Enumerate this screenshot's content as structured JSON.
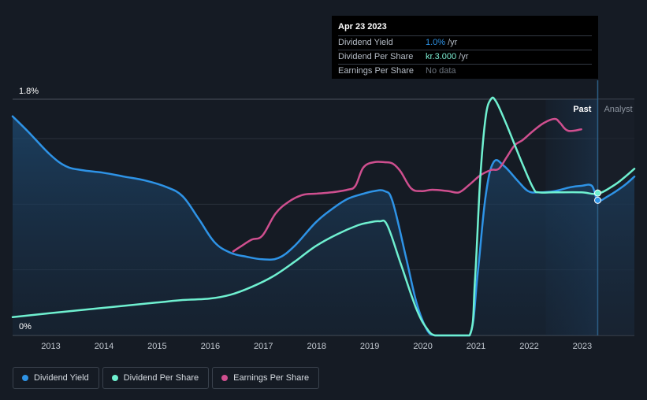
{
  "tooltip": {
    "date": "Apr 23 2023",
    "rows": [
      {
        "label": "Dividend Yield",
        "value": "1.0%",
        "unit": "/yr",
        "color": "#2e93e6"
      },
      {
        "label": "Dividend Per Share",
        "value": "kr.3.000",
        "unit": "/yr",
        "color": "#7ef0d5"
      },
      {
        "label": "Earnings Per Share",
        "value": "No data",
        "unit": "",
        "color": "#6b737d"
      }
    ]
  },
  "regions": {
    "past_label": "Past",
    "analyst_label": "Analyst"
  },
  "legend": [
    {
      "label": "Dividend Yield",
      "color": "#2e93e6"
    },
    {
      "label": "Dividend Per Share",
      "color": "#6ff0d0"
    },
    {
      "label": "Earnings Per Share",
      "color": "#cf4f8f"
    }
  ],
  "chart_data": {
    "type": "line",
    "y_ticks": [
      "1.8%",
      "0%"
    ],
    "x_ticks": [
      "2013",
      "2014",
      "2015",
      "2016",
      "2017",
      "2018",
      "2019",
      "2020",
      "2021",
      "2022",
      "2023"
    ],
    "ylim": [
      0,
      1.8
    ],
    "xlim": [
      2012.3,
      2024.0
    ],
    "past_end": 2023.31,
    "series": [
      {
        "name": "Dividend Yield",
        "color": "#2e93e6",
        "x": [
          2012.3,
          2012.6,
          2013.0,
          2013.3,
          2013.6,
          2014.0,
          2014.4,
          2014.8,
          2015.2,
          2015.5,
          2015.8,
          2016.1,
          2016.4,
          2016.7,
          2017.0,
          2017.3,
          2017.6,
          2018.0,
          2018.3,
          2018.6,
          2018.9,
          2019.1,
          2019.3,
          2019.45,
          2019.7,
          2019.9,
          2020.1,
          2020.25,
          2020.5,
          2020.9,
          2021.05,
          2021.2,
          2021.35,
          2021.55,
          2021.8,
          2022.0,
          2022.2,
          2022.5,
          2022.8,
          2023.0,
          2023.2,
          2023.31,
          2023.5,
          2023.8,
          2024.0
        ],
        "y": [
          1.67,
          1.55,
          1.38,
          1.29,
          1.26,
          1.24,
          1.21,
          1.18,
          1.13,
          1.06,
          0.89,
          0.71,
          0.63,
          0.6,
          0.58,
          0.59,
          0.68,
          0.86,
          0.96,
          1.04,
          1.08,
          1.1,
          1.1,
          1.02,
          0.6,
          0.25,
          0.04,
          0.0,
          0.0,
          0.0,
          0.47,
          1.06,
          1.32,
          1.29,
          1.18,
          1.1,
          1.09,
          1.1,
          1.13,
          1.14,
          1.14,
          1.03,
          1.06,
          1.14,
          1.21
        ]
      },
      {
        "name": "Dividend Per Share",
        "color": "#6ff0d0",
        "x": [
          2012.3,
          2013.0,
          2014.0,
          2015.0,
          2015.5,
          2016.0,
          2016.4,
          2016.8,
          2017.2,
          2017.6,
          2018.0,
          2018.4,
          2018.8,
          2019.0,
          2019.2,
          2019.35,
          2019.6,
          2019.9,
          2020.1,
          2020.25,
          2020.5,
          2020.9,
          2021.0,
          2021.1,
          2021.2,
          2021.3,
          2021.4,
          2021.6,
          2021.9,
          2022.1,
          2022.2,
          2022.5,
          2023.0,
          2023.31,
          2023.6,
          2023.8,
          2024.0
        ],
        "y": [
          0.14,
          0.17,
          0.21,
          0.25,
          0.27,
          0.28,
          0.31,
          0.37,
          0.45,
          0.56,
          0.68,
          0.77,
          0.84,
          0.86,
          0.87,
          0.84,
          0.55,
          0.2,
          0.05,
          0.0,
          0.0,
          0.0,
          0.42,
          1.2,
          1.66,
          1.8,
          1.78,
          1.6,
          1.3,
          1.12,
          1.09,
          1.09,
          1.09,
          1.08,
          1.14,
          1.2,
          1.27
        ]
      },
      {
        "name": "Earnings Per Share",
        "color": "#cf4f8f",
        "x": [
          2016.45,
          2016.6,
          2016.8,
          2017.0,
          2017.25,
          2017.5,
          2017.75,
          2018.0,
          2018.3,
          2018.6,
          2018.75,
          2018.9,
          2019.1,
          2019.3,
          2019.45,
          2019.6,
          2019.8,
          2020.0,
          2020.2,
          2020.5,
          2020.7,
          2020.9,
          2021.1,
          2021.3,
          2021.45,
          2021.6,
          2021.75,
          2021.9,
          2022.1,
          2022.3,
          2022.5,
          2022.6,
          2022.75,
          2023.0
        ],
        "y": [
          0.64,
          0.68,
          0.73,
          0.76,
          0.93,
          1.02,
          1.07,
          1.08,
          1.09,
          1.11,
          1.14,
          1.28,
          1.32,
          1.32,
          1.31,
          1.25,
          1.12,
          1.1,
          1.11,
          1.1,
          1.09,
          1.15,
          1.22,
          1.26,
          1.27,
          1.36,
          1.45,
          1.49,
          1.56,
          1.62,
          1.65,
          1.62,
          1.56,
          1.57
        ]
      }
    ]
  }
}
